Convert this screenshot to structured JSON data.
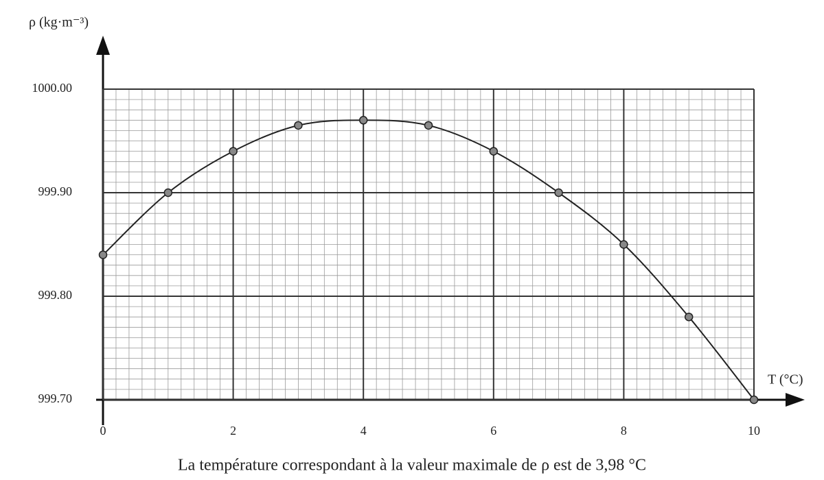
{
  "chart_data": {
    "type": "line",
    "y_label": "ρ  (kg·m⁻³)",
    "x_label": "T (°C)",
    "caption": "La température correspondant à la valeur maximale de ρ est de 3,98 °C",
    "x": [
      0,
      1,
      2,
      3,
      4,
      5,
      6,
      7,
      8,
      9,
      10
    ],
    "values": [
      999.84,
      999.9,
      999.94,
      999.965,
      999.97,
      999.965,
      999.94,
      999.9,
      999.85,
      999.78,
      999.7
    ],
    "color": "#222222",
    "xlim": [
      0,
      10
    ],
    "xticks": [
      0,
      2,
      4,
      6,
      8,
      10
    ],
    "ylim": [
      999.7,
      1000.0
    ],
    "yticks": [
      {
        "value": 999.7,
        "label": "999.70"
      },
      {
        "value": 999.8,
        "label": "999.80"
      },
      {
        "value": 999.9,
        "label": "999.90"
      },
      {
        "value": 1000.0,
        "label": "1000.00"
      }
    ],
    "grid": true,
    "minor_grid_divisions": 10
  }
}
